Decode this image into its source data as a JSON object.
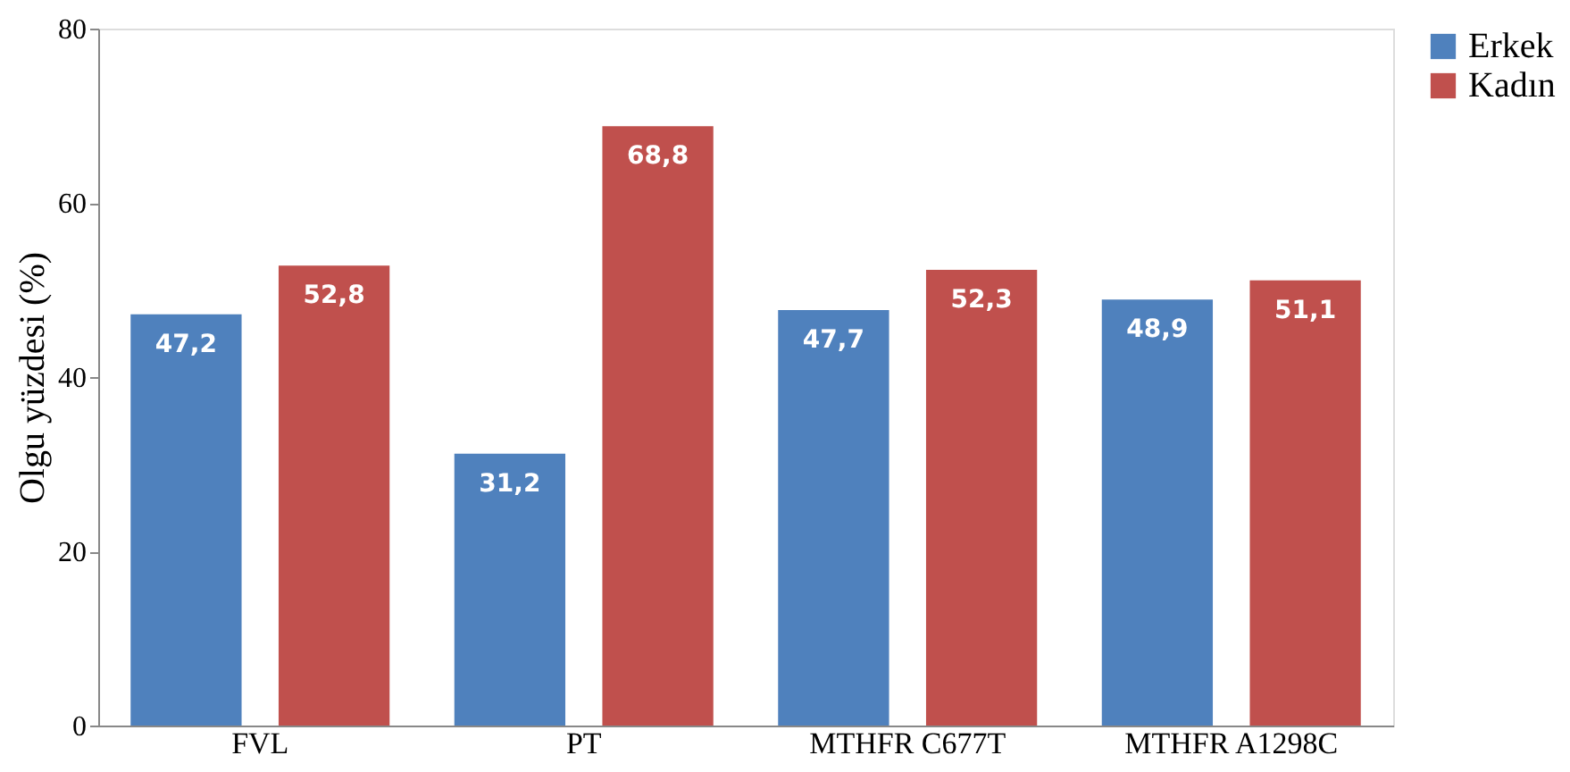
{
  "chart_data": {
    "type": "bar",
    "ylabel": "Olgu yüzdesi (%)",
    "categories": [
      "FVL",
      "PT",
      "MTHFR C677T",
      "MTHFR A1298C"
    ],
    "series": [
      {
        "name": "Erkek",
        "color": "#4f81bd",
        "values": [
          47.2,
          31.2,
          47.7,
          48.9
        ],
        "value_labels": [
          "47,2",
          "31,2",
          "47,7",
          "48,9"
        ]
      },
      {
        "name": "Kadın",
        "color": "#c0504d",
        "values": [
          52.8,
          68.8,
          52.3,
          51.1
        ],
        "value_labels": [
          "52,8",
          "68,8",
          "52,3",
          "51,1"
        ]
      }
    ],
    "ylim": [
      0,
      80
    ],
    "yticks": [
      0,
      20,
      40,
      60,
      80
    ],
    "grid": false,
    "legend": "right"
  }
}
